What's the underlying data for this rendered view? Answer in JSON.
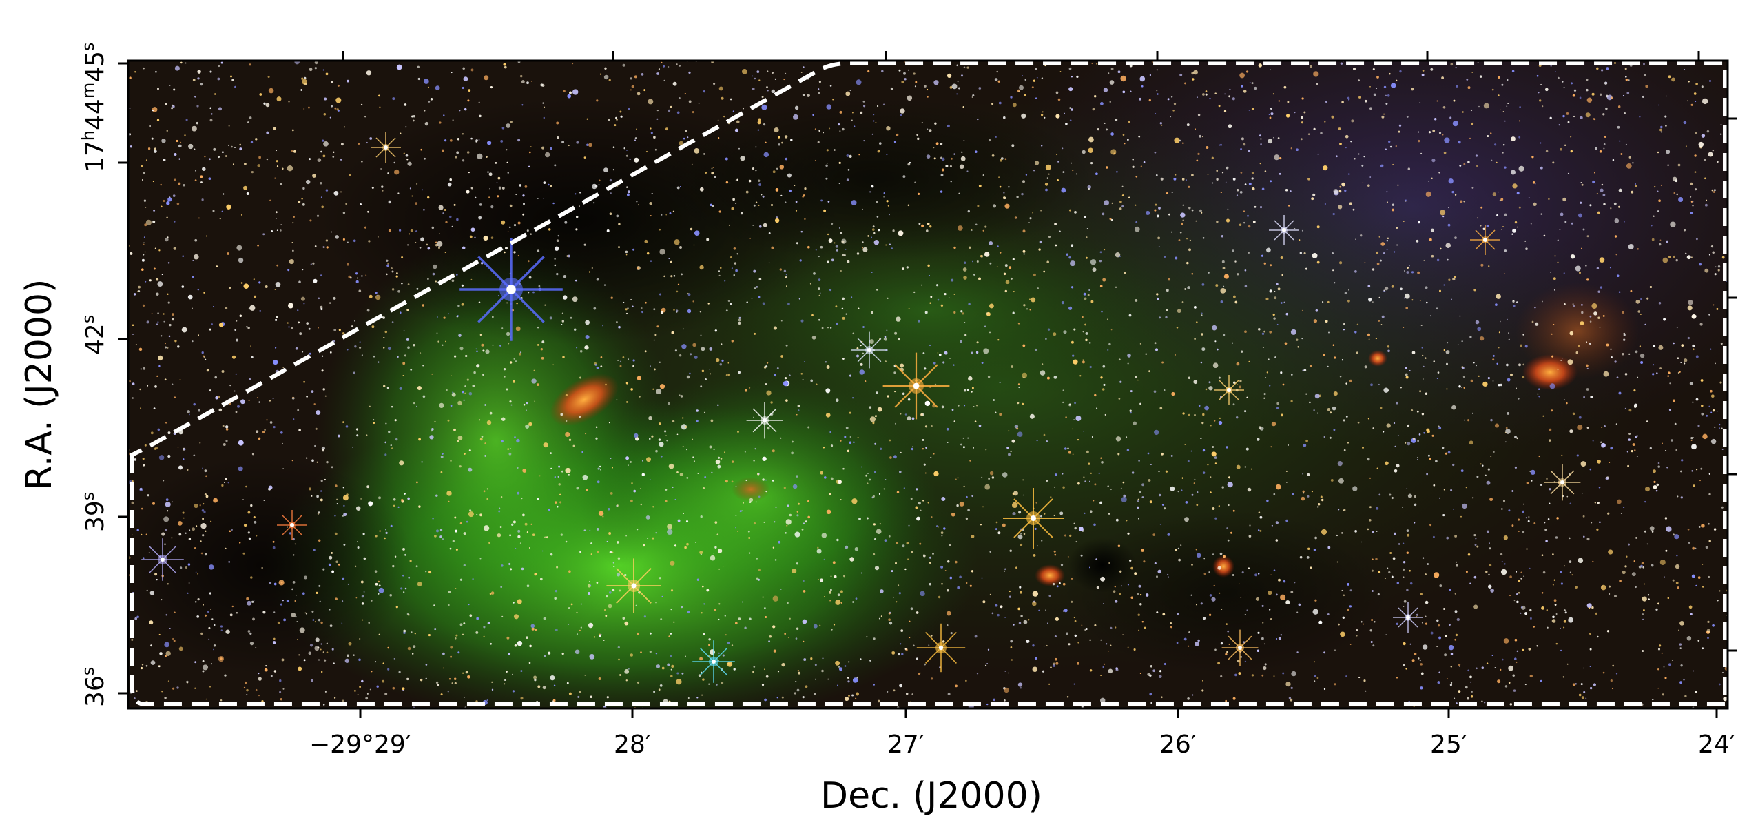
{
  "image": {
    "description_free": true,
    "background": "#ffffff",
    "colors": {
      "nebula_green": "#3fd21b",
      "star_white": "#f4f1e8",
      "star_blue": "#4458ff",
      "star_orange": "#ff9a2e",
      "dark_cloud": "#0b0603",
      "boundary": "#ffffff"
    }
  },
  "axes": {
    "xlabel": "Dec. (J2000)",
    "ylabel": "R.A. (J2000)",
    "x_ticks": [
      {
        "label": "−29°29′",
        "value": -29.4833
      },
      {
        "label": "28′",
        "value": -29.4667
      },
      {
        "label": "27′",
        "value": -29.45
      },
      {
        "label": "26′",
        "value": -29.4333
      },
      {
        "label": "25′",
        "value": -29.4167
      },
      {
        "label": "24′",
        "value": -29.4
      }
    ],
    "y_ticks": [
      {
        "h": "17",
        "m": "44",
        "s": "45",
        "value": 45
      },
      {
        "s": "42",
        "value": 42
      },
      {
        "s": "39",
        "value": 39
      },
      {
        "s": "36",
        "value": 36
      }
    ]
  }
}
